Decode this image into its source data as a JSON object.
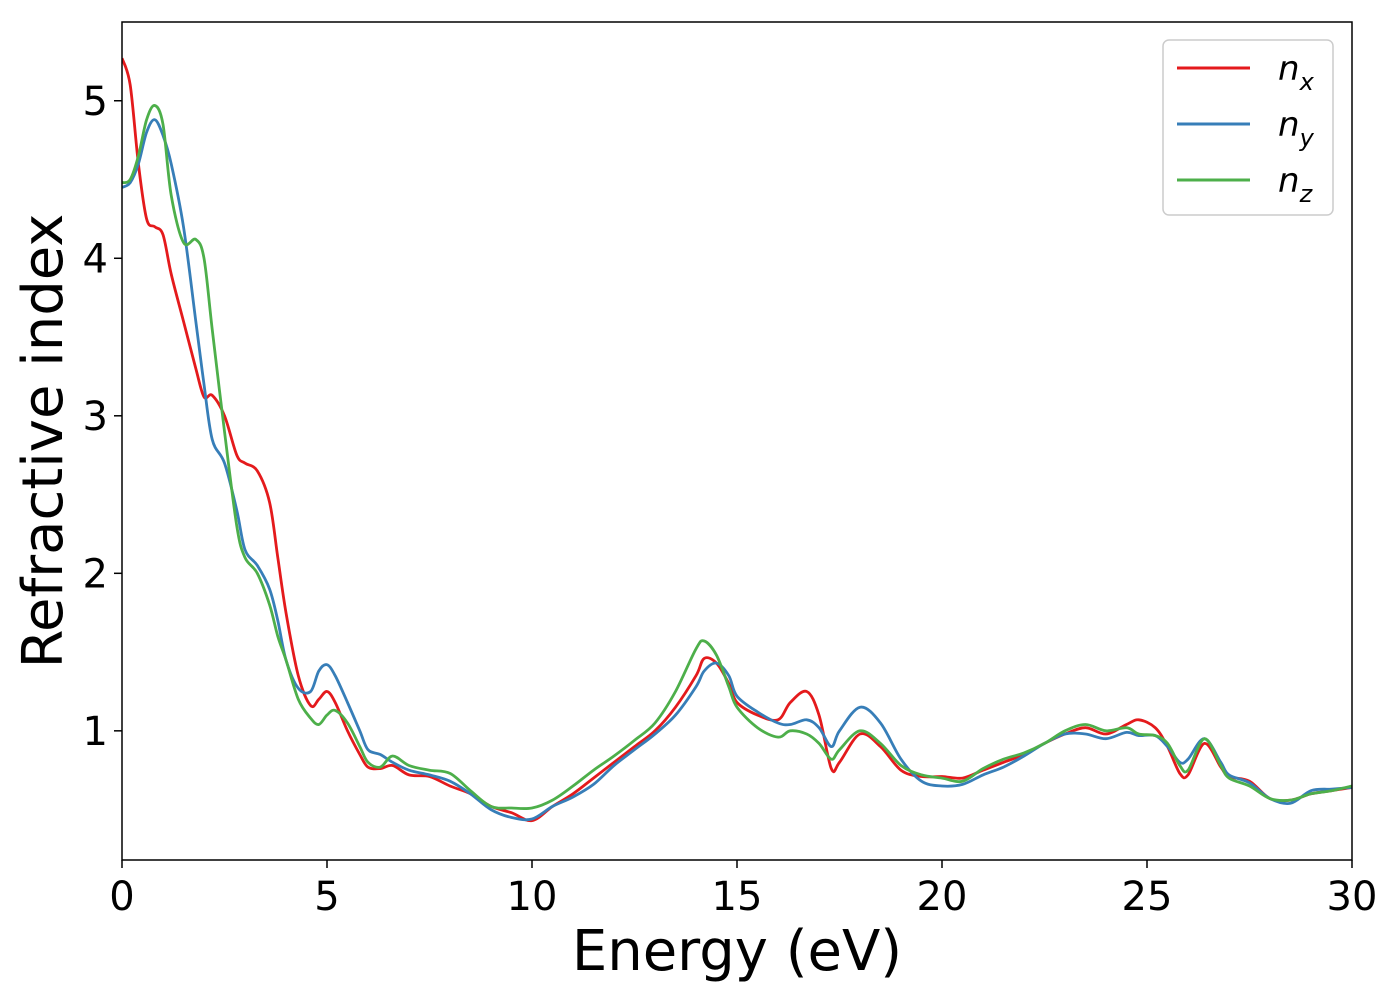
{
  "chart_data": {
    "type": "line",
    "title": "",
    "xlabel": "Energy (eV)",
    "ylabel": "Refractive index",
    "xlim": [
      0,
      30
    ],
    "ylim": [
      0.18,
      5.5
    ],
    "xticks": [
      0,
      5,
      10,
      15,
      20,
      25,
      30
    ],
    "yticks": [
      1,
      2,
      3,
      4,
      5
    ],
    "grid": false,
    "legend": "top-right",
    "series": [
      {
        "name": "n",
        "subscript": "x",
        "color": "#e41a1c",
        "x": [
          0,
          0.2,
          0.4,
          0.6,
          0.8,
          1.0,
          1.2,
          1.5,
          1.8,
          2.0,
          2.2,
          2.5,
          2.8,
          3.0,
          3.3,
          3.6,
          3.8,
          4.0,
          4.3,
          4.6,
          4.8,
          5.0,
          5.2,
          5.5,
          5.8,
          6.0,
          6.3,
          6.6,
          7.0,
          7.5,
          8.0,
          8.5,
          9.0,
          9.5,
          10.0,
          10.5,
          11.0,
          11.5,
          12.0,
          12.5,
          13.0,
          13.5,
          14.0,
          14.2,
          14.5,
          14.8,
          15.0,
          15.5,
          16.0,
          16.3,
          16.7,
          17.0,
          17.3,
          17.5,
          18.0,
          18.5,
          19.0,
          19.5,
          20.0,
          20.5,
          21.0,
          21.5,
          22.0,
          22.5,
          23.0,
          23.5,
          24.0,
          24.5,
          24.8,
          25.2,
          25.5,
          25.8,
          26.0,
          26.4,
          26.8,
          27.0,
          27.5,
          28.0,
          28.5,
          29.0,
          29.5,
          30.0
        ],
        "y": [
          5.27,
          5.1,
          4.6,
          4.25,
          4.2,
          4.15,
          3.9,
          3.6,
          3.3,
          3.12,
          3.13,
          3.0,
          2.75,
          2.7,
          2.65,
          2.45,
          2.1,
          1.75,
          1.35,
          1.16,
          1.2,
          1.25,
          1.18,
          1.0,
          0.85,
          0.77,
          0.76,
          0.78,
          0.72,
          0.71,
          0.65,
          0.6,
          0.52,
          0.48,
          0.43,
          0.52,
          0.6,
          0.7,
          0.8,
          0.9,
          1.0,
          1.15,
          1.35,
          1.46,
          1.43,
          1.3,
          1.18,
          1.1,
          1.07,
          1.18,
          1.25,
          1.1,
          0.76,
          0.8,
          0.98,
          0.9,
          0.75,
          0.71,
          0.71,
          0.7,
          0.75,
          0.8,
          0.85,
          0.92,
          0.98,
          1.02,
          0.98,
          1.04,
          1.07,
          1.02,
          0.9,
          0.73,
          0.72,
          0.92,
          0.77,
          0.71,
          0.68,
          0.57,
          0.56,
          0.6,
          0.62,
          0.64
        ]
      },
      {
        "name": "n",
        "subscript": "y",
        "color": "#377eb8",
        "x": [
          0,
          0.2,
          0.4,
          0.6,
          0.8,
          1.0,
          1.2,
          1.5,
          1.8,
          2.0,
          2.2,
          2.5,
          2.8,
          3.0,
          3.3,
          3.6,
          3.8,
          4.0,
          4.3,
          4.6,
          4.8,
          5.0,
          5.2,
          5.5,
          5.8,
          6.0,
          6.3,
          6.6,
          7.0,
          7.5,
          8.0,
          8.5,
          9.0,
          9.5,
          10.0,
          10.5,
          11.0,
          11.5,
          12.0,
          12.5,
          13.0,
          13.5,
          14.0,
          14.2,
          14.5,
          14.8,
          15.0,
          15.5,
          16.0,
          16.3,
          16.7,
          17.0,
          17.3,
          17.5,
          18.0,
          18.5,
          19.0,
          19.5,
          20.0,
          20.5,
          21.0,
          21.5,
          22.0,
          22.5,
          23.0,
          23.5,
          24.0,
          24.5,
          24.8,
          25.2,
          25.5,
          25.8,
          26.0,
          26.4,
          26.8,
          27.0,
          27.5,
          28.0,
          28.5,
          29.0,
          29.5,
          30.0
        ],
        "y": [
          4.45,
          4.48,
          4.6,
          4.8,
          4.88,
          4.78,
          4.6,
          4.2,
          3.6,
          3.2,
          2.85,
          2.7,
          2.4,
          2.15,
          2.05,
          1.9,
          1.7,
          1.45,
          1.27,
          1.25,
          1.38,
          1.42,
          1.35,
          1.18,
          1.0,
          0.88,
          0.85,
          0.8,
          0.75,
          0.72,
          0.68,
          0.6,
          0.5,
          0.45,
          0.44,
          0.52,
          0.58,
          0.66,
          0.78,
          0.88,
          0.98,
          1.1,
          1.28,
          1.38,
          1.43,
          1.35,
          1.22,
          1.12,
          1.05,
          1.04,
          1.07,
          1.02,
          0.9,
          1.0,
          1.15,
          1.05,
          0.82,
          0.68,
          0.65,
          0.66,
          0.72,
          0.77,
          0.84,
          0.92,
          0.98,
          0.98,
          0.95,
          0.99,
          0.97,
          0.97,
          0.9,
          0.8,
          0.82,
          0.95,
          0.8,
          0.72,
          0.67,
          0.57,
          0.54,
          0.62,
          0.63,
          0.64
        ]
      },
      {
        "name": "n",
        "subscript": "z",
        "color": "#4daf4a",
        "x": [
          0,
          0.2,
          0.4,
          0.6,
          0.8,
          1.0,
          1.2,
          1.5,
          1.8,
          2.0,
          2.2,
          2.5,
          2.8,
          3.0,
          3.3,
          3.6,
          3.8,
          4.0,
          4.3,
          4.6,
          4.8,
          5.0,
          5.2,
          5.5,
          5.8,
          6.0,
          6.3,
          6.6,
          7.0,
          7.5,
          8.0,
          8.5,
          9.0,
          9.5,
          10.0,
          10.5,
          11.0,
          11.5,
          12.0,
          12.5,
          13.0,
          13.5,
          14.0,
          14.2,
          14.5,
          14.8,
          15.0,
          15.5,
          16.0,
          16.3,
          16.7,
          17.0,
          17.3,
          17.5,
          18.0,
          18.5,
          19.0,
          19.5,
          20.0,
          20.5,
          21.0,
          21.5,
          22.0,
          22.5,
          23.0,
          23.5,
          24.0,
          24.5,
          24.8,
          25.2,
          25.5,
          25.8,
          26.0,
          26.4,
          26.8,
          27.0,
          27.5,
          28.0,
          28.5,
          29.0,
          29.5,
          30.0
        ],
        "y": [
          4.48,
          4.5,
          4.65,
          4.88,
          4.97,
          4.85,
          4.4,
          4.1,
          4.12,
          4.0,
          3.55,
          2.9,
          2.3,
          2.1,
          2.0,
          1.8,
          1.6,
          1.45,
          1.2,
          1.08,
          1.04,
          1.1,
          1.13,
          1.05,
          0.9,
          0.8,
          0.77,
          0.84,
          0.78,
          0.75,
          0.73,
          0.62,
          0.52,
          0.51,
          0.51,
          0.56,
          0.65,
          0.75,
          0.84,
          0.94,
          1.05,
          1.25,
          1.52,
          1.57,
          1.48,
          1.28,
          1.15,
          1.02,
          0.96,
          1.0,
          0.98,
          0.92,
          0.82,
          0.88,
          1.0,
          0.92,
          0.78,
          0.72,
          0.7,
          0.68,
          0.76,
          0.82,
          0.86,
          0.92,
          1.0,
          1.04,
          1.0,
          1.02,
          0.98,
          0.97,
          0.92,
          0.78,
          0.75,
          0.95,
          0.78,
          0.7,
          0.65,
          0.57,
          0.56,
          0.6,
          0.62,
          0.65
        ]
      }
    ]
  }
}
